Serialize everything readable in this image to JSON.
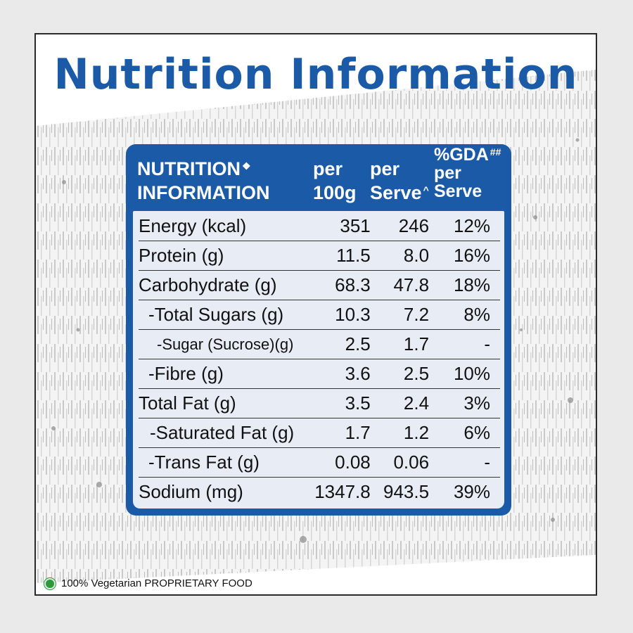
{
  "title": "Nutrition Information",
  "table": {
    "headers": {
      "col1_line1": "NUTRITION",
      "col1_sup": "❖",
      "col1_line2": "INFORMATION",
      "col2_line1": "per",
      "col2_line2": "100g",
      "col3_line1": "per",
      "col3_line2": "Serve",
      "col3_sup": "^",
      "col4_line1": "%GDA",
      "col4_sup": "##",
      "col4_line2": "per",
      "col4_line3": "Serve"
    },
    "rows": [
      {
        "label": "Energy (kcal)",
        "per100g": "351",
        "perServe": "246",
        "gda": "12%"
      },
      {
        "label": "Protein (g)",
        "per100g": "11.5",
        "perServe": "8.0",
        "gda": "16%"
      },
      {
        "label": "Carbohydrate (g)",
        "per100g": "68.3",
        "perServe": "47.8",
        "gda": "18%"
      },
      {
        "label": "-Total Sugars (g)",
        "per100g": "10.3",
        "perServe": "7.2",
        "gda": "8%"
      },
      {
        "label": "-Sugar (Sucrose)(g)",
        "per100g": "2.5",
        "perServe": "1.7",
        "gda": "-"
      },
      {
        "label": "-Fibre (g)",
        "per100g": "3.6",
        "perServe": "2.5",
        "gda": "10%"
      },
      {
        "label": "Total Fat (g)",
        "per100g": "3.5",
        "perServe": "2.4",
        "gda": "3%"
      },
      {
        "label": "-Saturated Fat (g)",
        "per100g": "1.7",
        "perServe": "1.2",
        "gda": "6%"
      },
      {
        "label": "-Trans Fat (g)",
        "per100g": "0.08",
        "perServe": "0.06",
        "gda": "-"
      },
      {
        "label": "Sodium (mg)",
        "per100g": "1347.8",
        "perServe": "943.5",
        "gda": "39%"
      }
    ]
  },
  "footer": {
    "veg_icon": "vegetarian-mark-icon",
    "text": "100% Vegetarian PROPRIETARY FOOD"
  },
  "colors": {
    "brand_blue": "#1b5aa6",
    "table_bg": "#e7ecf5",
    "veg_green": "#2a9a3a"
  }
}
